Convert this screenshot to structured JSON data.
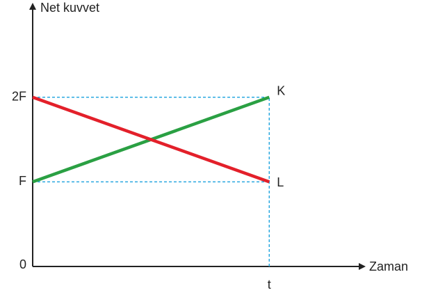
{
  "chart_data": {
    "type": "line",
    "ylabel": "Net kuvvet",
    "xlabel": "Zaman",
    "x": [
      0,
      1
    ],
    "series": [
      {
        "name": "K",
        "color": "#2aa043",
        "values": [
          1,
          2
        ]
      },
      {
        "name": "L",
        "color": "#e3202a",
        "values": [
          2,
          1
        ]
      }
    ],
    "xlim": [
      0,
      1.39
    ],
    "ylim": [
      0,
      3.1
    ],
    "xticks": [
      {
        "value": 1,
        "label": "t"
      }
    ],
    "yticks": [
      0,
      {
        "value": 1,
        "label": "F"
      },
      {
        "value": 2,
        "label": "2F"
      }
    ],
    "grid": true,
    "grid_color": "#29a8e0"
  }
}
